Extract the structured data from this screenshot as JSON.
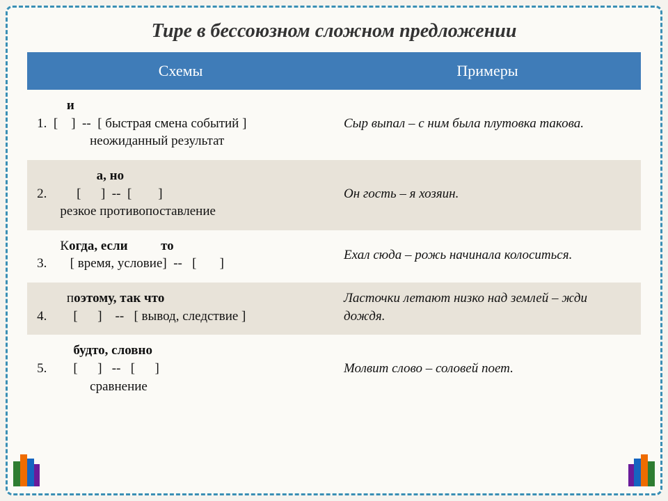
{
  "title": "Тире в бессоюзном сложном предложении",
  "headers": {
    "schemas": "Схемы",
    "examples": "Примеры"
  },
  "rows": [
    {
      "num": "1.",
      "hint_prefix": "",
      "hint": "и",
      "bracket": "[    ]  --  [ быстрая смена событий ]",
      "desc": "неожиданный результат",
      "hint_pad": "         ",
      "bracket_pad": "",
      "desc_pad": "                ",
      "example": "Сыр выпал – с ним была плутовка такова."
    },
    {
      "num": "2.",
      "hint_prefix": "",
      "hint": "а, но",
      "bracket": "[      ]  --  [        ]",
      "desc": "резкое противопоставление",
      "hint_pad": "                  ",
      "bracket_pad": "       ",
      "desc_pad": "       ",
      "example": "Он гость – я хозяин."
    },
    {
      "num": "3.",
      "hint_prefix": "К",
      "hint": "огда, если          то",
      "bracket": "[ время, условие]  --   [       ]",
      "desc": "",
      "hint_pad": "       ",
      "bracket_pad": "     ",
      "desc_pad": "",
      "example": "Ехал сюда – рожь начинала колоситься."
    },
    {
      "num": "4.",
      "hint_prefix": "п",
      "hint": "оэтому, так что",
      "bracket": "[      ]    --   [ вывод, следствие ]",
      "desc": "",
      "hint_pad": "         ",
      "bracket_pad": "      ",
      "desc_pad": "",
      "example": "Ласточки летают низко над землей – жди дождя."
    },
    {
      "num": "5.",
      "hint_prefix": "",
      "hint": "будто, словно",
      "bracket": "[      ]   --   [      ]",
      "desc": "сравнение",
      "hint_pad": "           ",
      "bracket_pad": "      ",
      "desc_pad": "                ",
      "example": "Молвит слово – соловей поет."
    }
  ],
  "colors": {
    "header_bg": "#3f7cb8",
    "header_text": "#ffffff",
    "row_even_bg": "#e8e3d9",
    "row_odd_bg": "#fbfaf6",
    "frame_border": "#3a8fb5",
    "page_bg": "#fbfaf6",
    "text": "#111111"
  }
}
